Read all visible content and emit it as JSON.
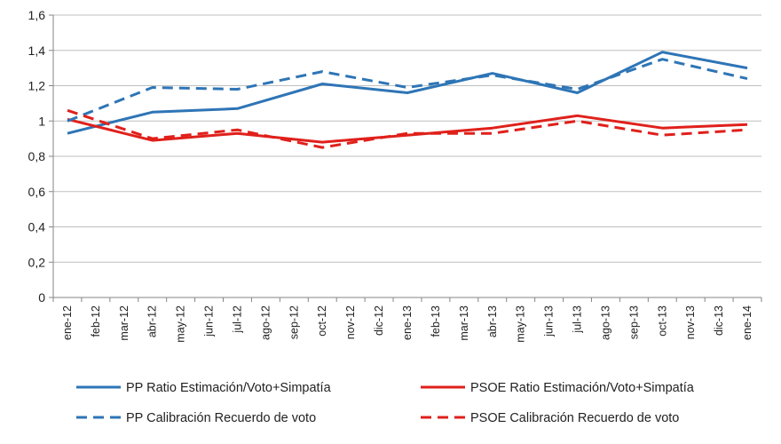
{
  "chart_data": {
    "type": "line",
    "title": "",
    "xlabel": "",
    "ylabel": "",
    "ylim": [
      0,
      1.6
    ],
    "ytick_step": 0.2,
    "ytick_labels": [
      "0",
      "0,2",
      "0,4",
      "0,6",
      "0,8",
      "1",
      "1,2",
      "1,4",
      "1,6"
    ],
    "grid": "horizontal",
    "legend_position": "bottom",
    "categories": [
      "ene-12",
      "feb-12",
      "mar-12",
      "abr-12",
      "may-12",
      "jun-12",
      "jul-12",
      "ago-12",
      "sep-12",
      "oct-12",
      "nov-12",
      "dic-12",
      "ene-13",
      "feb-13",
      "mar-13",
      "abr-13",
      "may-13",
      "jun-13",
      "jul-13",
      "ago-13",
      "sep-13",
      "oct-13",
      "nov-13",
      "dic-13",
      "ene-14"
    ],
    "series": [
      {
        "name": "PP Ratio Estimación/Voto+Simpatía",
        "color": "#2E75B6",
        "style": "solid",
        "x": [
          0,
          3,
          6,
          9,
          12,
          15,
          18,
          21,
          24
        ],
        "values": [
          0.93,
          1.05,
          1.07,
          1.21,
          1.16,
          1.27,
          1.16,
          1.39,
          1.3
        ]
      },
      {
        "name": "PSOE Ratio Estimación/Voto+Simpatía",
        "color": "#E0201B",
        "style": "solid",
        "x": [
          0,
          3,
          6,
          9,
          12,
          15,
          18,
          21,
          24
        ],
        "values": [
          1.01,
          0.89,
          0.93,
          0.88,
          0.92,
          0.96,
          1.03,
          0.96,
          0.98
        ]
      },
      {
        "name": "PP Calibración Recuerdo de voto",
        "color": "#2E75B6",
        "style": "dashed",
        "x": [
          0,
          3,
          6,
          9,
          12,
          15,
          18,
          21,
          24
        ],
        "values": [
          1.0,
          1.19,
          1.18,
          1.28,
          1.19,
          1.26,
          1.18,
          1.35,
          1.24
        ]
      },
      {
        "name": "PSOE Calibración Recuerdo de voto",
        "color": "#E0201B",
        "style": "dashed",
        "x": [
          0,
          3,
          6,
          9,
          12,
          15,
          18,
          21,
          24
        ],
        "values": [
          1.06,
          0.9,
          0.95,
          0.85,
          0.93,
          0.93,
          1.0,
          0.92,
          0.95
        ]
      }
    ]
  }
}
